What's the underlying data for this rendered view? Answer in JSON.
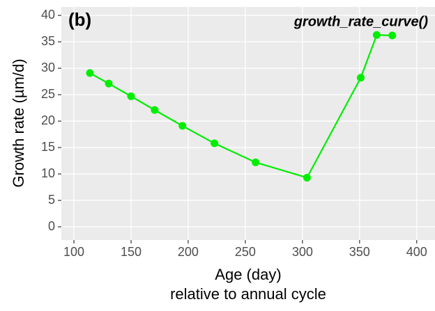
{
  "chart_data": {
    "type": "line",
    "tag": "(b)",
    "annotation": "growth_rate_curve()",
    "xlabel": [
      "Age (day)",
      "relative to annual cycle"
    ],
    "ylabel": "Growth rate (µm/d)",
    "x": [
      114,
      130.5,
      150,
      170.7,
      195,
      223,
      259,
      304,
      351,
      365,
      378.6
    ],
    "series": [
      {
        "color": "#00ee00",
        "values": [
          29.1,
          27.1,
          24.7,
          22.1,
          19.1,
          15.8,
          12.2,
          9.3,
          28.2,
          36.3,
          36.2
        ]
      }
    ],
    "xlim": [
      89,
      416
    ],
    "xticks": [
      100,
      150,
      200,
      250,
      300,
      350,
      400
    ],
    "ylim": [
      -2.5,
      41.6
    ],
    "yticks": [
      0,
      5,
      10,
      15,
      20,
      25,
      30,
      35,
      40
    ],
    "grid": true
  }
}
